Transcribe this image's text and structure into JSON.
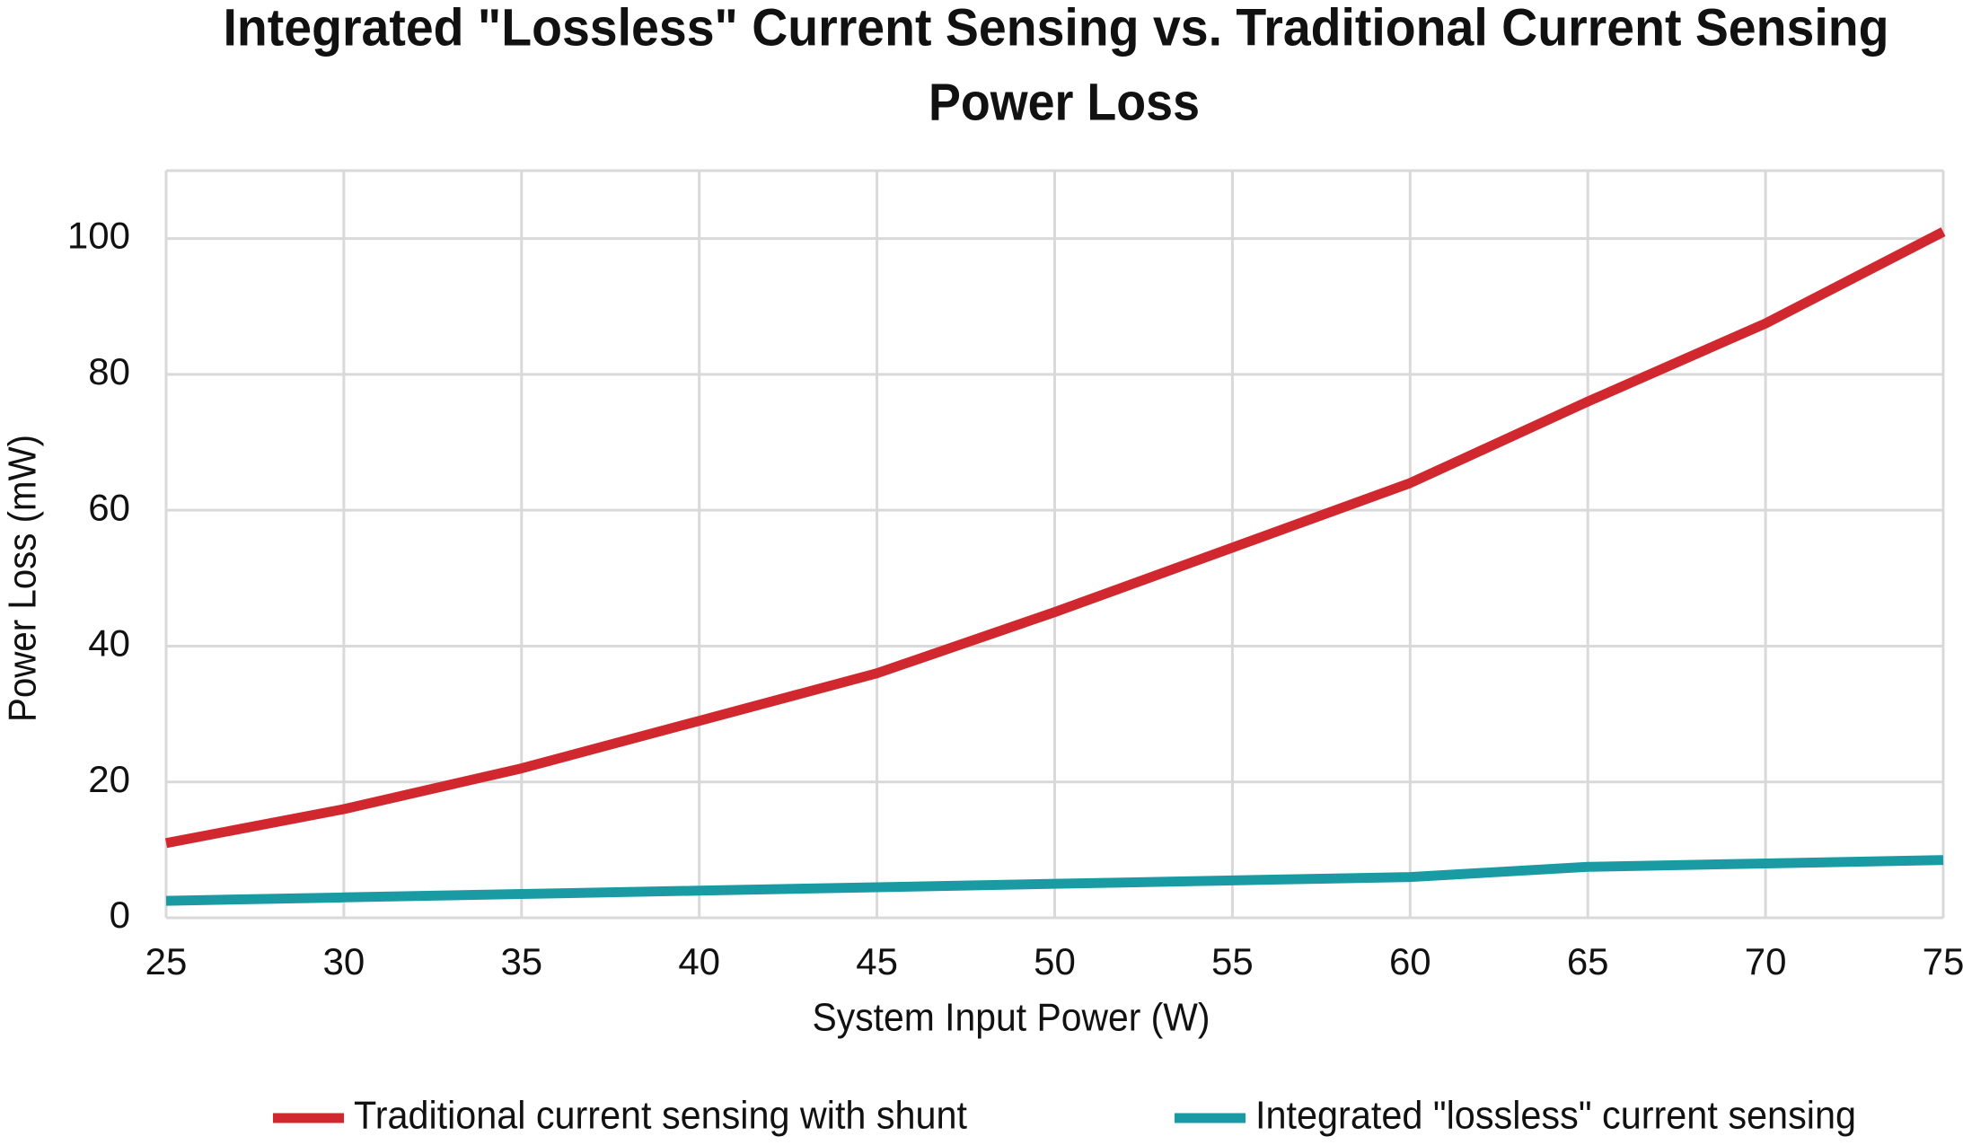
{
  "chart_data": {
    "type": "line",
    "title": [
      "Integrated \"Lossless\" Current Sensing vs. Traditional Current Sensing",
      "Power Loss"
    ],
    "x_label": "System Input Power (W)",
    "y_label": "Power Loss (mW)",
    "x": [
      25,
      30,
      35,
      40,
      45,
      50,
      55,
      60,
      65,
      70,
      75
    ],
    "series": [
      {
        "name": "Traditional current sensing with shunt",
        "color": "#d0282e",
        "values": [
          11,
          16,
          22,
          29,
          36,
          45,
          54.5,
          64,
          76,
          87.5,
          101
        ]
      },
      {
        "name": "Integrated \"lossless\" current sensing",
        "color": "#1a9ba3",
        "values": [
          2.5,
          3,
          3.5,
          4,
          4.5,
          5,
          5.5,
          6,
          7.5,
          8,
          8.5
        ]
      }
    ],
    "xlim": [
      25,
      75
    ],
    "xticks": [
      25,
      30,
      35,
      40,
      45,
      50,
      55,
      60,
      65,
      70,
      75
    ],
    "ylim": [
      0,
      110
    ],
    "yticks": [
      0,
      20,
      40,
      60,
      80,
      100
    ],
    "grid": true,
    "legend": "bottom"
  }
}
